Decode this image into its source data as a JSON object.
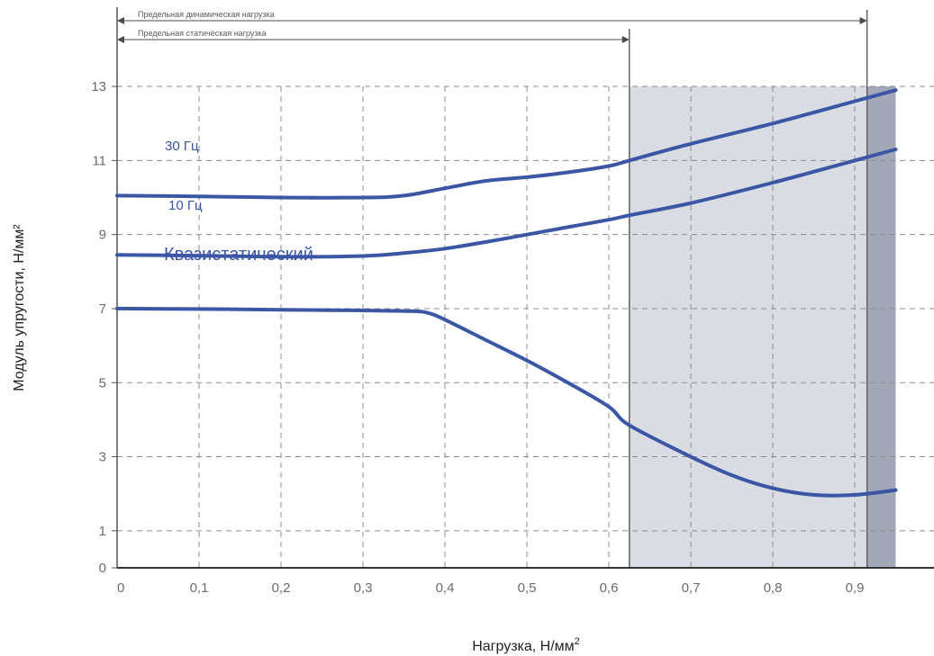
{
  "chart_data": {
    "type": "line",
    "xlabel": "Нагрузка, Н/мм",
    "xlabel_sup": "2",
    "ylabel": "Модуль упругости, Н/мм²",
    "xlim": [
      0,
      0.95
    ],
    "ylim": [
      0,
      13
    ],
    "grid": true,
    "x_ticks": [
      0,
      0.1,
      0.2,
      0.3,
      0.4,
      0.5,
      0.6,
      0.7,
      0.8,
      0.9
    ],
    "x_tick_labels": [
      "0",
      "0,1",
      "0,2",
      "0,3",
      "0,4",
      "0,5",
      "0,6",
      "0,7",
      "0,8",
      "0,9"
    ],
    "y_ticks": [
      0,
      1,
      3,
      5,
      7,
      9,
      11,
      13
    ],
    "y_tick_labels": [
      "0",
      "1",
      "3",
      "5",
      "7",
      "9",
      "11",
      "13"
    ],
    "limits": [
      {
        "name": "Предельная динамическая нагрузка",
        "x": 0.915
      },
      {
        "name": "Предельная статическая нагрузка",
        "x": 0.625
      }
    ],
    "regions": [
      {
        "from": 0.625,
        "to": 0.915,
        "color": "#d9dce2"
      },
      {
        "from": 0.915,
        "to": 0.95,
        "color": "#a3a8b8"
      }
    ],
    "series": [
      {
        "name": "30 Гц",
        "color": "#3a56a5",
        "label_font_size": 15,
        "x": [
          0,
          0.1,
          0.2,
          0.3,
          0.35,
          0.4,
          0.45,
          0.5,
          0.55,
          0.6,
          0.625,
          0.7,
          0.8,
          0.9,
          0.95
        ],
        "y": [
          10.05,
          10.03,
          10.0,
          10.0,
          10.05,
          10.25,
          10.45,
          10.55,
          10.68,
          10.85,
          11.0,
          11.45,
          12.0,
          12.6,
          12.9
        ]
      },
      {
        "name": "10 Гц",
        "color": "#3a56a5",
        "label_font_size": 15,
        "x": [
          0,
          0.1,
          0.2,
          0.3,
          0.35,
          0.4,
          0.45,
          0.5,
          0.55,
          0.6,
          0.625,
          0.7,
          0.8,
          0.9,
          0.95
        ],
        "y": [
          8.45,
          8.43,
          8.4,
          8.42,
          8.5,
          8.62,
          8.8,
          9.0,
          9.2,
          9.4,
          9.52,
          9.85,
          10.4,
          11.0,
          11.3
        ]
      },
      {
        "name": "Квазистатический",
        "color": "#3a56a5",
        "label_font_size": 20,
        "x": [
          0,
          0.1,
          0.2,
          0.3,
          0.36,
          0.38,
          0.4,
          0.45,
          0.5,
          0.55,
          0.6,
          0.625,
          0.7,
          0.75,
          0.8,
          0.85,
          0.9,
          0.95
        ],
        "y": [
          7.0,
          6.99,
          6.97,
          6.95,
          6.93,
          6.88,
          6.7,
          6.15,
          5.6,
          5.0,
          4.35,
          3.85,
          3.0,
          2.5,
          2.15,
          1.97,
          1.97,
          2.1
        ]
      }
    ]
  }
}
